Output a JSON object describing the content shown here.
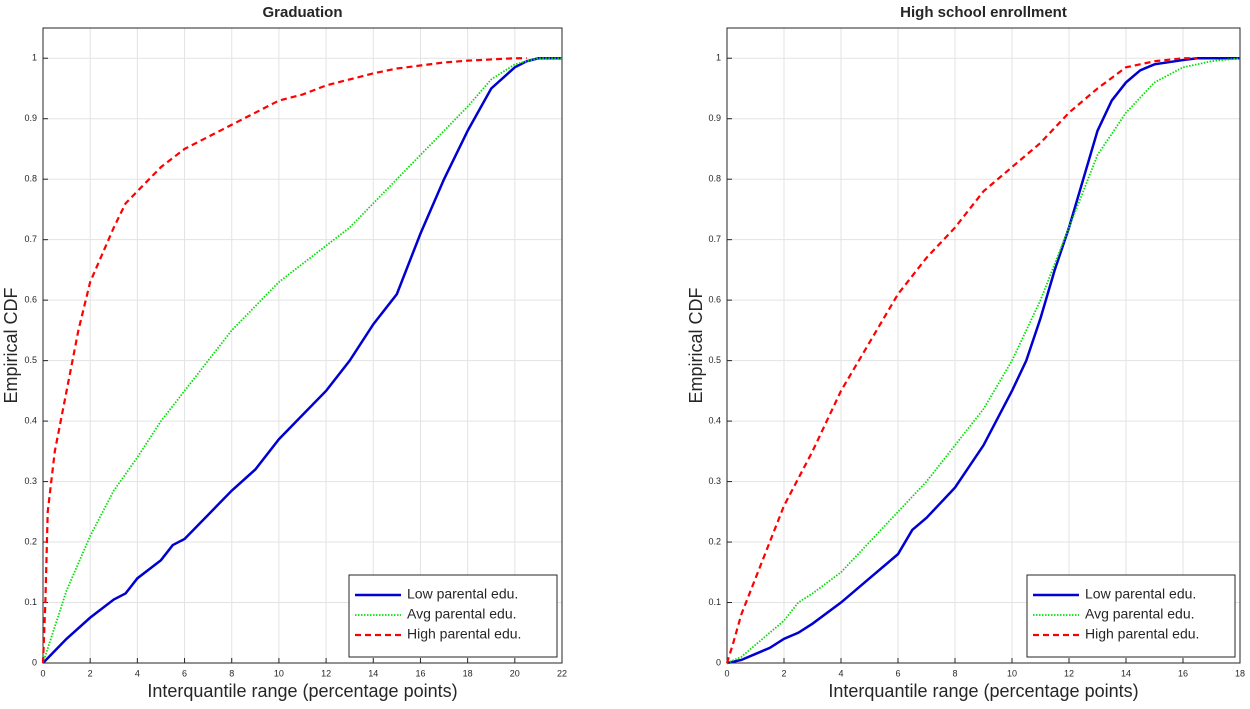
{
  "chart_data": [
    {
      "type": "line",
      "title": "Graduation",
      "x_label": "Interquantile range (percentage points)",
      "y_label": "Empirical CDF",
      "xlim": [
        0,
        22
      ],
      "xticks": [
        0,
        2,
        4,
        6,
        8,
        10,
        12,
        14,
        16,
        18,
        20,
        22
      ],
      "ylim": [
        0,
        1.05
      ],
      "yticks": [
        0,
        0.1,
        0.2,
        0.3,
        0.4,
        0.5,
        0.6,
        0.7,
        0.8,
        0.9,
        1
      ],
      "grid": true,
      "legend": "lower right",
      "series": [
        {
          "name": "Low parental edu.",
          "color": "#0000d0",
          "dash": "solid",
          "x": [
            0,
            0.5,
            1,
            2,
            3,
            3.5,
            4,
            5,
            5.5,
            6,
            7,
            8,
            9,
            10,
            11,
            12,
            13,
            14,
            15,
            16,
            17,
            18,
            19,
            20,
            20.5,
            21,
            22
          ],
          "values": [
            0,
            0.02,
            0.04,
            0.075,
            0.105,
            0.115,
            0.14,
            0.17,
            0.195,
            0.205,
            0.245,
            0.285,
            0.32,
            0.37,
            0.41,
            0.45,
            0.5,
            0.56,
            0.61,
            0.71,
            0.8,
            0.88,
            0.95,
            0.985,
            0.995,
            1,
            1
          ]
        },
        {
          "name": "Avg parental edu.",
          "color": "#00e000",
          "dash": "dotted",
          "x": [
            0,
            0.5,
            1,
            2,
            3,
            4,
            5,
            6,
            7,
            8,
            9,
            10,
            11,
            12,
            13,
            14,
            15,
            16,
            17,
            18,
            19,
            20,
            21,
            22
          ],
          "values": [
            0,
            0.06,
            0.12,
            0.21,
            0.285,
            0.34,
            0.4,
            0.45,
            0.5,
            0.55,
            0.59,
            0.63,
            0.66,
            0.69,
            0.72,
            0.76,
            0.8,
            0.84,
            0.88,
            0.92,
            0.965,
            0.99,
            1,
            1
          ]
        },
        {
          "name": "High parental edu.",
          "color": "#ff0000",
          "dash": "dashed",
          "x": [
            0,
            0.1,
            0.2,
            0.5,
            1,
            1.5,
            2,
            3,
            3.5,
            4,
            5,
            6,
            7,
            8,
            9,
            10,
            11,
            12,
            13,
            14,
            15,
            16,
            17,
            18,
            19,
            20,
            20.5
          ],
          "values": [
            0,
            0.1,
            0.25,
            0.35,
            0.45,
            0.55,
            0.63,
            0.72,
            0.76,
            0.78,
            0.82,
            0.85,
            0.87,
            0.89,
            0.91,
            0.93,
            0.94,
            0.955,
            0.965,
            0.975,
            0.983,
            0.988,
            0.993,
            0.996,
            0.998,
            1,
            1
          ]
        }
      ]
    },
    {
      "type": "line",
      "title": "High school enrollment",
      "x_label": "Interquantile range (percentage points)",
      "y_label": "Empirical CDF",
      "xlim": [
        0,
        18
      ],
      "xticks": [
        0,
        2,
        4,
        6,
        8,
        10,
        12,
        14,
        16,
        18
      ],
      "ylim": [
        0,
        1.05
      ],
      "yticks": [
        0,
        0.1,
        0.2,
        0.3,
        0.4,
        0.5,
        0.6,
        0.7,
        0.8,
        0.9,
        1
      ],
      "grid": true,
      "legend": "lower right",
      "series": [
        {
          "name": "Low parental edu.",
          "color": "#0000d0",
          "dash": "solid",
          "x": [
            0,
            0.5,
            1,
            1.5,
            2,
            2.5,
            3,
            4,
            5,
            6,
            6.5,
            7,
            8,
            9,
            10,
            10.5,
            11,
            11.5,
            12,
            12.5,
            13,
            13.5,
            14,
            14.5,
            15,
            16,
            16.5,
            18
          ],
          "values": [
            0,
            0.005,
            0.015,
            0.025,
            0.04,
            0.05,
            0.065,
            0.1,
            0.14,
            0.18,
            0.22,
            0.24,
            0.29,
            0.36,
            0.45,
            0.5,
            0.57,
            0.65,
            0.72,
            0.8,
            0.88,
            0.93,
            0.96,
            0.98,
            0.99,
            0.997,
            1,
            1
          ]
        },
        {
          "name": "Avg parental edu.",
          "color": "#00e000",
          "dash": "dotted",
          "x": [
            0,
            0.5,
            1,
            2,
            2.5,
            3,
            4,
            5,
            6,
            7,
            8,
            9,
            10,
            11,
            11.5,
            12,
            12.5,
            13,
            14,
            15,
            16,
            17,
            18
          ],
          "values": [
            0,
            0.01,
            0.03,
            0.07,
            0.1,
            0.115,
            0.15,
            0.2,
            0.25,
            0.3,
            0.36,
            0.42,
            0.5,
            0.6,
            0.66,
            0.72,
            0.78,
            0.84,
            0.91,
            0.96,
            0.985,
            0.995,
            1
          ]
        },
        {
          "name": "High parental edu.",
          "color": "#ff0000",
          "dash": "dashed",
          "x": [
            0,
            0.2,
            0.5,
            1,
            1.5,
            2,
            3,
            4,
            5,
            6,
            7,
            8,
            9,
            10,
            11,
            12,
            13,
            14,
            15,
            16,
            16.5
          ],
          "values": [
            0,
            0.03,
            0.08,
            0.14,
            0.2,
            0.26,
            0.35,
            0.45,
            0.53,
            0.61,
            0.67,
            0.72,
            0.78,
            0.82,
            0.86,
            0.91,
            0.95,
            0.985,
            0.995,
            1,
            1
          ]
        }
      ]
    }
  ]
}
